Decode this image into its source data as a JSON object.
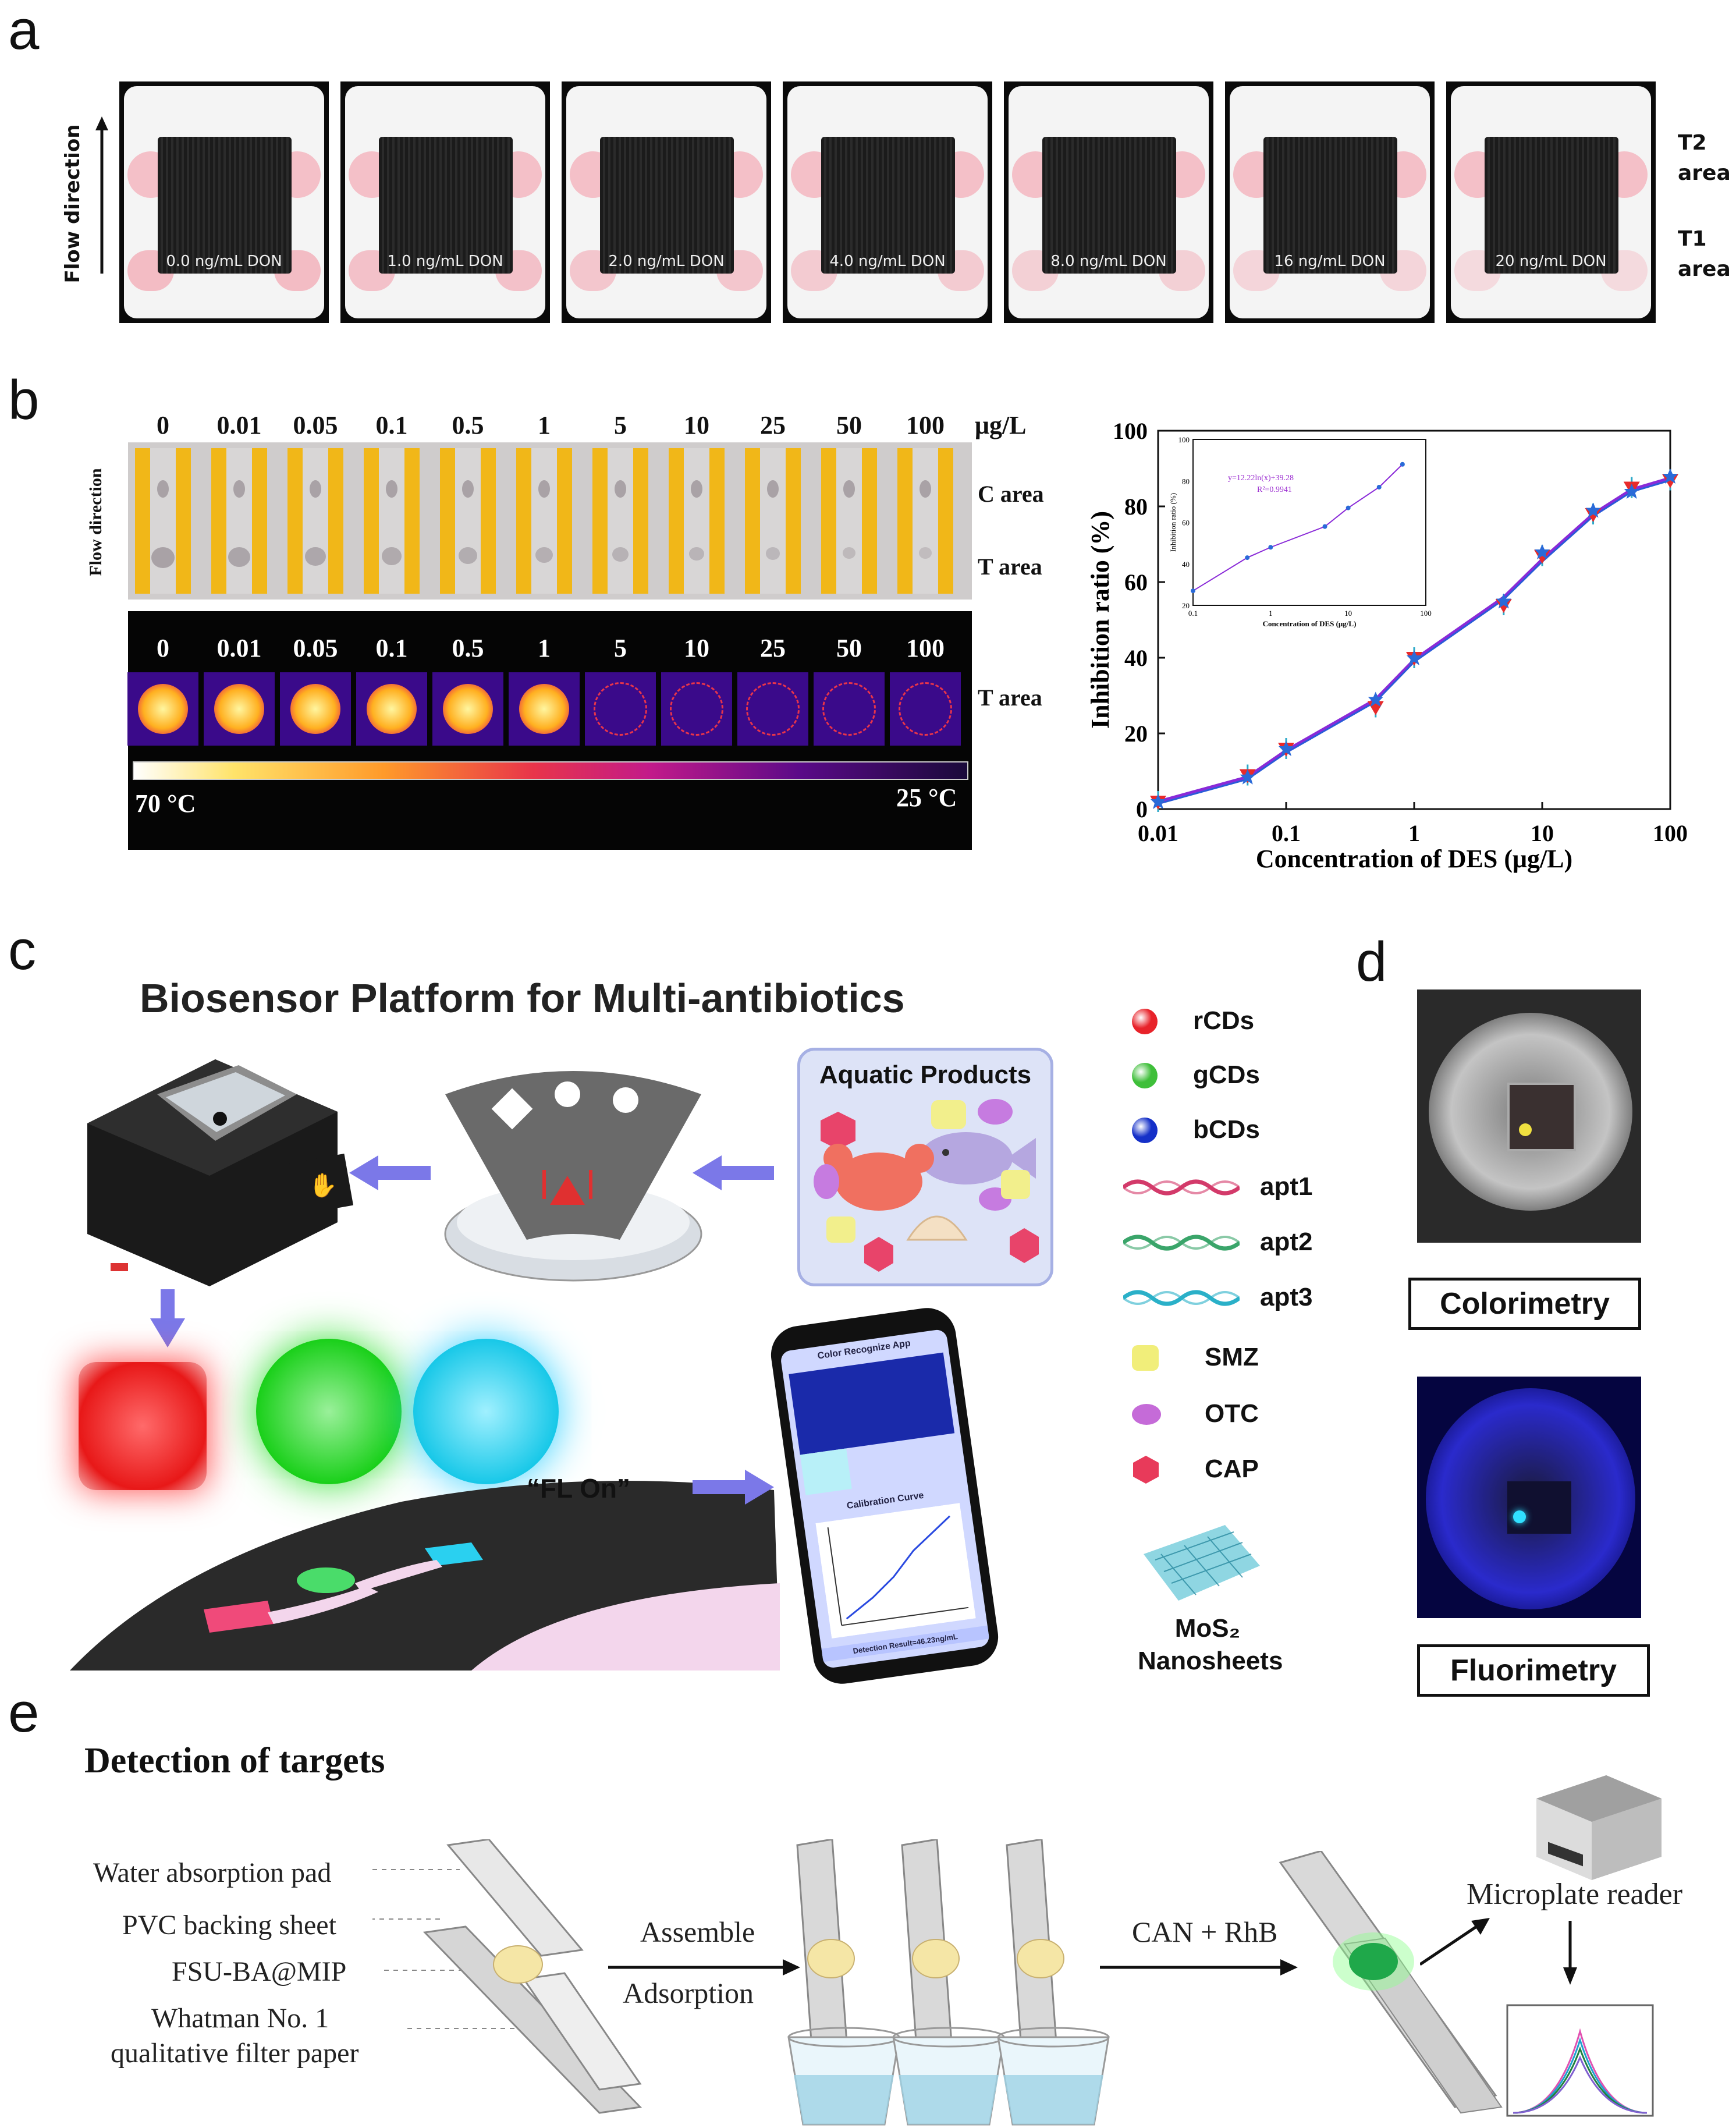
{
  "panel_labels": {
    "a": "a",
    "b": "b",
    "c": "c",
    "d": "d",
    "e": "e"
  },
  "panel_a": {
    "flow_label": "Flow direction",
    "strips": [
      "0.0 ng/mL DON",
      "1.0 ng/mL DON",
      "2.0 ng/mL DON",
      "4.0 ng/mL DON",
      "8.0 ng/mL DON",
      "16 ng/mL DON",
      "20 ng/mL DON"
    ],
    "t2_label": [
      "T2",
      "area"
    ],
    "t1_label": [
      "T1",
      "area"
    ]
  },
  "panel_b": {
    "flow_label": "Flow direction",
    "concentrations": [
      "0",
      "0.01",
      "0.05",
      "0.1",
      "0.5",
      "1",
      "5",
      "10",
      "25",
      "50",
      "100"
    ],
    "unit": "μg/L",
    "c_area": "C area",
    "t_area": "T area",
    "thermal_t_area": "T area",
    "temp_high": "70 °C",
    "temp_low": "25 °C"
  },
  "chart_data": [
    {
      "type": "scatter",
      "xlabel": "Concentration of DES (μg/L)",
      "ylabel": "Inhibition ratio (%)",
      "x_scale": "log",
      "xlim": [
        0.01,
        100
      ],
      "ylim": [
        0,
        100
      ],
      "x_ticks": [
        "0.01",
        "0.1",
        "1",
        "10",
        "100"
      ],
      "y_ticks": [
        "0",
        "20",
        "40",
        "60",
        "80",
        "100"
      ],
      "x": [
        0.01,
        0.05,
        0.1,
        0.5,
        1,
        5,
        10,
        25,
        50,
        100
      ],
      "series": [
        {
          "values": [
            2,
            9,
            16,
            27,
            40,
            54,
            67,
            78,
            85,
            87
          ]
        },
        {
          "values": [
            2,
            8.5,
            16,
            29,
            40,
            55,
            68,
            79,
            84,
            88
          ]
        }
      ],
      "fit_curve": {
        "x": [
          0.01,
          0.05,
          0.1,
          0.5,
          1,
          5,
          10,
          25,
          50,
          100
        ],
        "y": [
          2,
          8.5,
          15.5,
          29,
          39.5,
          56,
          66,
          78,
          84.5,
          87.5
        ]
      }
    },
    {
      "type": "line",
      "xlabel": "Concentration of DES (μg/L)",
      "ylabel": "Inhibition ratio (%)",
      "x_scale": "log",
      "xlim": [
        0.1,
        100
      ],
      "ylim": [
        20,
        100
      ],
      "x_ticks": [
        "0.1",
        "1",
        "10",
        "100"
      ],
      "y_ticks": [
        "20",
        "40",
        "60",
        "80",
        "100"
      ],
      "x": [
        0.1,
        0.5,
        1,
        5,
        10,
        25,
        50
      ],
      "values": [
        27,
        43,
        48,
        58,
        67,
        77,
        88
      ],
      "equation": "y=12.22ln(x)+39.28",
      "r2": "R²=0.9941"
    }
  ],
  "panel_c": {
    "title": "Biosensor Platform for Multi-antibiotics",
    "aquatic": "Aquatic Products",
    "fl_on": "“FL On”",
    "phone_app": "Color Recognize App",
    "calibration": "Calibration Curve",
    "detection_result": "Detection Result=46.23ng/mL",
    "legend": [
      {
        "label": "rCDs",
        "color": "#e8232a"
      },
      {
        "label": "gCDs",
        "color": "#3fbf3a"
      },
      {
        "label": "bCDs",
        "color": "#1530c8"
      },
      {
        "label": "apt1",
        "color": "#d33a6a"
      },
      {
        "label": "apt2",
        "color": "#3aa56a"
      },
      {
        "label": "apt3",
        "color": "#2ab0c8"
      },
      {
        "label": "SMZ",
        "color": "#f1ee7a"
      },
      {
        "label": "OTC",
        "color": "#c56bd8"
      },
      {
        "label": "CAP",
        "color": "#e83a5a"
      }
    ],
    "mos2": [
      "MoS₂",
      "Nanosheets"
    ]
  },
  "panel_d": {
    "colorimetry": "Colorimetry",
    "fluorimetry": "Fluorimetry"
  },
  "panel_e": {
    "title": "Detection of targets",
    "labels": [
      "Water absorption pad",
      "PVC backing sheet",
      "FSU-BA@MIP",
      "Whatman No. 1",
      "qualitative filter paper"
    ],
    "assemble": "Assemble",
    "adsorption": "Adsorption",
    "reagent": "CAN + RhB",
    "reader": "Microplate reader"
  }
}
